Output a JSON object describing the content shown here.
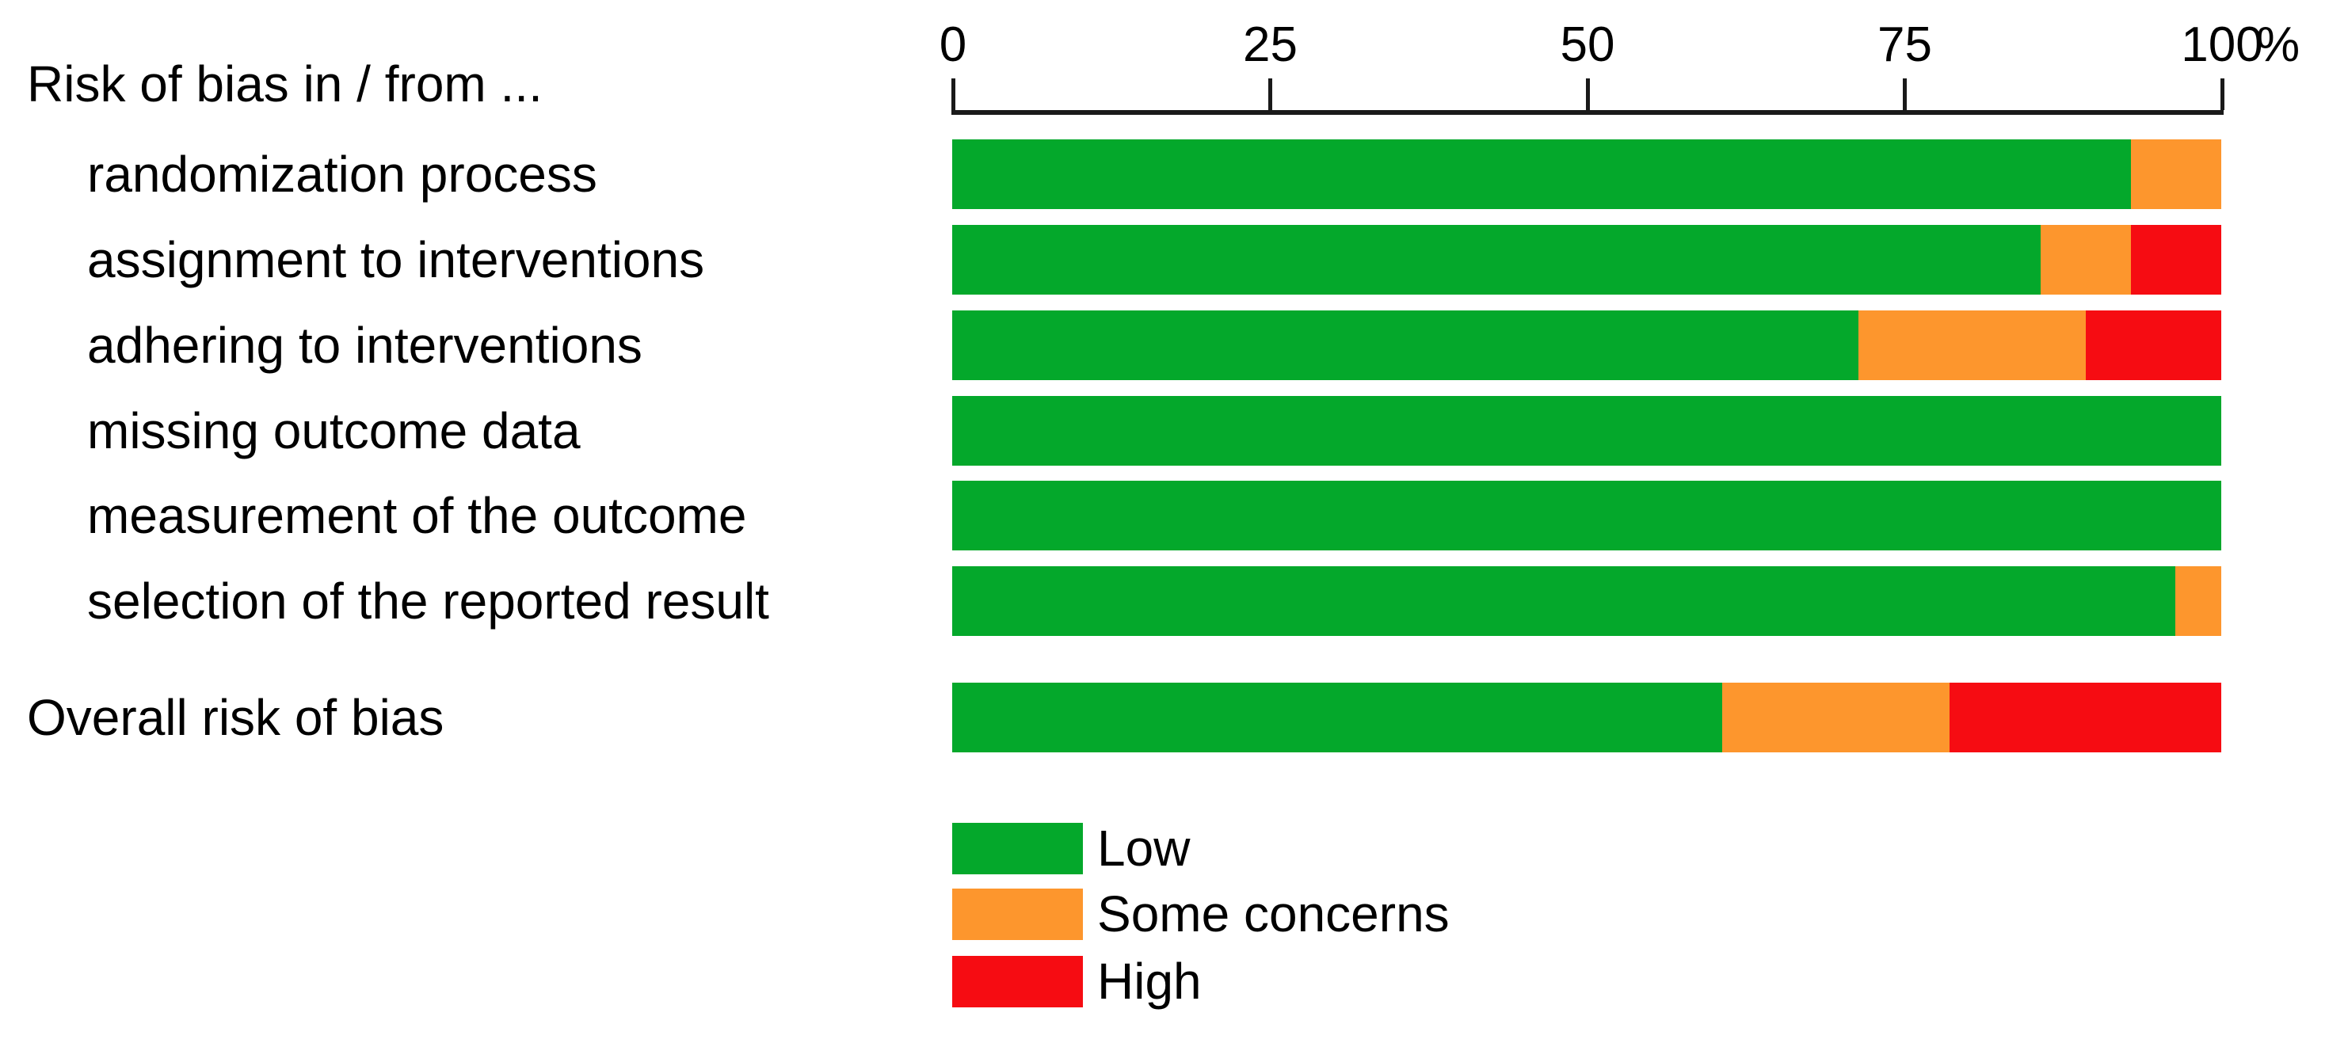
{
  "chart_data": {
    "type": "bar",
    "variant": "horizontal_stacked_percentage",
    "title": "Risk of bias in / from ...",
    "categories": [
      {
        "label": "randomization process",
        "indented": true
      },
      {
        "label": "assignment to interventions",
        "indented": true
      },
      {
        "label": "adhering to interventions",
        "indented": true
      },
      {
        "label": "missing outcome data",
        "indented": true
      },
      {
        "label": "measurement of the outcome",
        "indented": true
      },
      {
        "label": "selection of the reported result",
        "indented": true
      },
      {
        "label": "Overall risk of bias",
        "indented": false
      }
    ],
    "series": [
      {
        "name": "Low",
        "color": "#04A82B",
        "values": [
          92.9,
          85.7,
          71.4,
          100,
          100,
          96.4,
          60.7
        ]
      },
      {
        "name": "Some concerns",
        "color": "#FD962D",
        "values": [
          7.1,
          7.1,
          17.9,
          0,
          0,
          3.6,
          17.9
        ]
      },
      {
        "name": "High",
        "color": "#F60C12",
        "values": [
          0,
          7.1,
          10.7,
          0,
          0,
          0,
          21.4
        ]
      }
    ],
    "xlim": [
      0,
      100
    ],
    "x_ticks": [
      "0",
      "25",
      "50",
      "75",
      "100"
    ],
    "x_unit": "%",
    "grid": false,
    "legend_position": "bottom-left",
    "axis_color": "#1A1A1A",
    "text_color": "#000000"
  },
  "legend": {
    "items": [
      {
        "label": "Low",
        "color": "#04A82B"
      },
      {
        "label": "Some concerns",
        "color": "#FD962D"
      },
      {
        "label": "High",
        "color": "#F60C12"
      }
    ]
  }
}
